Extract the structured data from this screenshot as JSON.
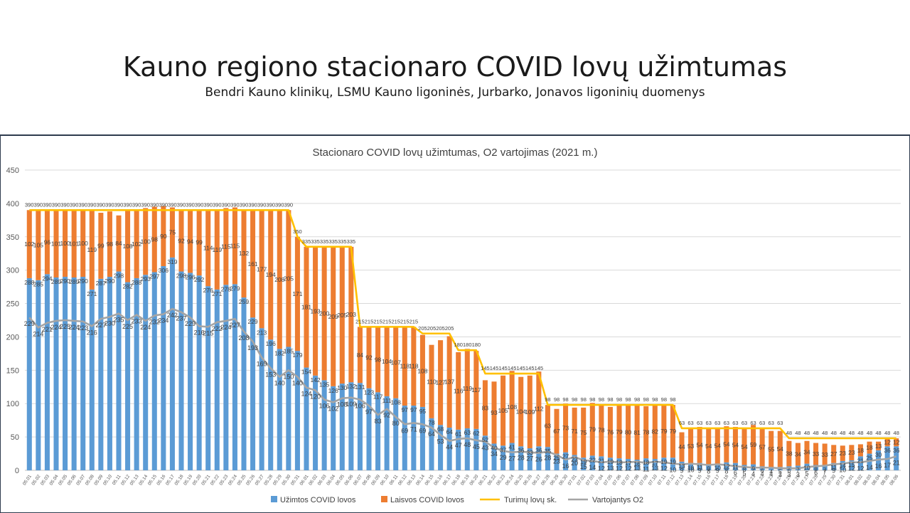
{
  "slide": {
    "title": "Kauno regiono stacionaro COVID lovų užimtumas",
    "subtitle": "Bendri Kauno klinikų, LSMU Kauno ligoninės, Jurbarko, Jonavos ligoninių duomenys"
  },
  "chart_data": {
    "type": "bar",
    "title": "Stacionaro COVID lovų užimtumas, O2 vartojimas (2021 m.)",
    "ylim": [
      0,
      450
    ],
    "yticks": [
      0,
      50,
      100,
      150,
      200,
      250,
      300,
      350,
      400,
      450
    ],
    "grid": true,
    "legend_position": "bottom",
    "categories": [
      "05.01",
      "05.02",
      "05.03",
      "05.04",
      "05.05",
      "05.06",
      "05.07",
      "05.08",
      "05.09",
      "05.10",
      "05.11",
      "05.12",
      "05.13",
      "05.14",
      "05.15",
      "05.16",
      "05.17",
      "05.18",
      "05.19",
      "05.20",
      "05.21",
      "05.22",
      "05.23",
      "05.24",
      "05.25",
      "05.26",
      "05.27",
      "05.28",
      "05.29",
      "05.30",
      "05.31",
      "06.01",
      "06.02",
      "06.03",
      "06.04",
      "06.05",
      "06.06",
      "06.07",
      "06.08",
      "06.09",
      "06.10",
      "06.11",
      "06.12",
      "06.13",
      "06.14",
      "06.15",
      "06.16",
      "06.17",
      "06.18",
      "06.19",
      "06.20",
      "06.21",
      "06.22",
      "06.23",
      "06.24",
      "06.25",
      "06.26",
      "06.27",
      "06.28",
      "06.29",
      "06.30",
      "07.01",
      "07.02",
      "07.03",
      "07.04",
      "07.05",
      "07.06",
      "07.07",
      "07.08",
      "07.09",
      "07.10",
      "07.11",
      "07.12",
      "07.13",
      "07.14",
      "07.15",
      "07.16",
      "07.17",
      "07.18",
      "07.19",
      "07.20",
      "07.21",
      "07.22",
      "07.23",
      "07.24",
      "07.25",
      "07.26",
      "07.27",
      "07.28",
      "07.29",
      "07.30",
      "07.31",
      "08.01",
      "08.02",
      "08.03",
      "08.04",
      "08.05",
      "08.06"
    ],
    "series": [
      {
        "name": "Užimtos COVID lovos",
        "type": "bar",
        "stack": "beds",
        "color": "#5b9bd5",
        "values": [
          288,
          285,
          294,
          289,
          290,
          289,
          290,
          271,
          287,
          290,
          298,
          282,
          288,
          293,
          297,
          306,
          319,
          298,
          296,
          292,
          276,
          271,
          278,
          279,
          259,
          229,
          213,
          196,
          182,
          185,
          179,
          154,
          142,
          135,
          126,
          130,
          132,
          131,
          123,
          117,
          111,
          108,
          97,
          97,
          95,
          78,
          68,
          64,
          61,
          63,
          62,
          52,
          40,
          37,
          41,
          36,
          33,
          36,
          35,
          25,
          27,
          23,
          19,
          22,
          21,
          19,
          18,
          17,
          16,
          18,
          17,
          19,
          19,
          13,
          10,
          11,
          9,
          10,
          12,
          11,
          8,
          9,
          6,
          4,
          5,
          6,
          7,
          10,
          8,
          7,
          11,
          14,
          15,
          21,
          25,
          30,
          36,
          36
        ],
        "labels": [
          "288",
          "285",
          "294",
          "289",
          "290",
          "289",
          "290",
          "271",
          "287",
          "290",
          "298",
          "282",
          "288",
          "293",
          "297",
          "306",
          "319",
          "298",
          "296",
          "292",
          "276",
          "271",
          "278",
          "279",
          "259",
          "229",
          "213",
          "196",
          "182",
          "185",
          "179",
          "154",
          "142",
          "135",
          "126",
          "130",
          "132",
          "131",
          "123",
          "117",
          "111",
          "108",
          "97",
          "97",
          "95",
          "78",
          "68",
          "64",
          "61",
          "63",
          "62",
          "52",
          "40",
          "37",
          "41",
          "36",
          "33",
          "36",
          "35",
          "25",
          "27",
          "23",
          "19",
          "22",
          "21",
          "19",
          "18",
          "17",
          "16",
          "18",
          "17",
          "19",
          "19",
          "13",
          "10",
          "11",
          "9",
          "10",
          "12",
          "11",
          "8",
          "9",
          "6",
          "4",
          "5",
          "6",
          "7",
          "10",
          "8",
          "7",
          "11",
          "14",
          "15",
          "21",
          "25",
          "30",
          "36",
          "36"
        ]
      },
      {
        "name": "Laisvos COVID lovos",
        "type": "bar",
        "stack": "beds",
        "color": "#ed7d31",
        "values": [
          102,
          105,
          96,
          101,
          100,
          101,
          100,
          119,
          99,
          98,
          84,
          108,
          102,
          100,
          98,
          90,
          75,
          92,
          94,
          99,
          114,
          119,
          115,
          115,
          132,
          161,
          177,
          194,
          208,
          205,
          171,
          181,
          193,
          200,
          209,
          205,
          203,
          84,
          92,
          98,
          104,
          107,
          118,
          118,
          108,
          110,
          127,
          137,
          116,
          119,
          117,
          83,
          93,
          105,
          108,
          104,
          109,
          112,
          63,
          67,
          73,
          71,
          75,
          79,
          78,
          76,
          79,
          80,
          81,
          78,
          82,
          79,
          79,
          44,
          53,
          54,
          54,
          54,
          54,
          54,
          54,
          59,
          57,
          55,
          54,
          38,
          34,
          34,
          33,
          33,
          27,
          23,
          23,
          18,
          18,
          13,
          12,
          12
        ],
        "labels": [
          "102",
          "105",
          "96",
          "101",
          "100",
          "101",
          "100",
          "119",
          "99",
          "98",
          "84",
          "108",
          "102",
          "100",
          "98",
          "90",
          "75",
          "92",
          "94",
          "99",
          "114",
          "119",
          "115",
          "115",
          "132",
          "161",
          "177",
          "194",
          "208",
          "205",
          "171",
          "181",
          "193",
          "200",
          "209",
          "205",
          "203",
          "84",
          "92",
          "98",
          "104",
          "107",
          "118",
          "118",
          "108",
          "110",
          "127",
          "137",
          "116",
          "119",
          "117",
          "83",
          "93",
          "105",
          "108",
          "104",
          "109",
          "112",
          "63",
          "67",
          "73",
          "71",
          "75",
          "79",
          "78",
          "76",
          "79",
          "80",
          "81",
          "78",
          "82",
          "79",
          "79",
          "44",
          "53",
          "54",
          "54",
          "54",
          "54",
          "54",
          "54",
          "59",
          "57",
          "55",
          "54",
          "38",
          "34",
          "34",
          "33",
          "33",
          "27",
          "23",
          "23",
          "18",
          "18",
          "13",
          "12",
          "12"
        ]
      },
      {
        "name": "Turimų lovų sk.",
        "type": "line",
        "color": "#ffc000",
        "values": [
          390,
          390,
          390,
          390,
          390,
          390,
          390,
          390,
          390,
          390,
          390,
          390,
          390,
          390,
          390,
          390,
          390,
          390,
          390,
          390,
          390,
          390,
          390,
          390,
          390,
          390,
          390,
          390,
          390,
          390,
          350,
          335,
          335,
          335,
          335,
          335,
          335,
          215,
          215,
          215,
          215,
          215,
          215,
          215,
          205,
          205,
          205,
          205,
          180,
          180,
          180,
          145,
          145,
          145,
          145,
          145,
          145,
          145,
          98,
          98,
          98,
          98,
          98,
          98,
          98,
          98,
          98,
          98,
          98,
          98,
          98,
          98,
          98,
          63,
          63,
          63,
          63,
          63,
          63,
          63,
          63,
          63,
          63,
          63,
          63,
          48,
          48,
          48,
          48,
          48,
          48,
          48,
          48,
          48,
          48,
          48,
          48,
          48
        ],
        "labels": [
          "390",
          "390",
          "390",
          "390",
          "390",
          "390",
          "390",
          "390",
          "390",
          "390",
          "390",
          "390",
          "390",
          "390",
          "390",
          "390",
          "390",
          "390",
          "390",
          "390",
          "390",
          "390",
          "390",
          "390",
          "390",
          "390",
          "390",
          "390",
          "390",
          "390",
          "350",
          "335",
          "335",
          "335",
          "335",
          "335",
          "335",
          "215",
          "215",
          "215",
          "215",
          "215",
          "215",
          "215",
          "205",
          "205",
          "205",
          "205",
          "180",
          "180",
          "180",
          "145",
          "145",
          "145",
          "145",
          "145",
          "145",
          "145",
          "98",
          "98",
          "98",
          "98",
          "98",
          "98",
          "98",
          "98",
          "98",
          "98",
          "98",
          "98",
          "98",
          "98",
          "98",
          "63",
          "63",
          "63",
          "63",
          "63",
          "63",
          "63",
          "63",
          "63",
          "63",
          "63",
          "63",
          "48",
          "48",
          "48",
          "48",
          "48",
          "48",
          "48",
          "48",
          "48",
          "48",
          "48",
          "48",
          "48"
        ]
      },
      {
        "name": "Vartojantys O2",
        "type": "line",
        "color": "#a5a5a5",
        "values": [
          229,
          214,
          221,
          224,
          225,
          224,
          223,
          216,
          227,
          230,
          235,
          225,
          233,
          224,
          232,
          234,
          242,
          237,
          229,
          216,
          215,
          222,
          224,
          227,
          208,
          193,
          169,
          153,
          140,
          150,
          140,
          124,
          120,
          106,
          102,
          108,
          109,
          106,
          97,
          83,
          92,
          80,
          69,
          71,
          69,
          64,
          53,
          44,
          47,
          48,
          45,
          43,
          34,
          29,
          27,
          28,
          27,
          26,
          28,
          23,
          16,
          20,
          15,
          14,
          12,
          13,
          12,
          12,
          13,
          11,
          13,
          12,
          10,
          9,
          10,
          9,
          8,
          9,
          8,
          6,
          5,
          4,
          4,
          4,
          3,
          3,
          3,
          5,
          6,
          7,
          9,
          10,
          12,
          12,
          14,
          16,
          17,
          21
        ],
        "labels": [
          "229",
          "214",
          "221",
          "224",
          "225",
          "224",
          "223",
          "216",
          "227",
          "230",
          "235",
          "225",
          "233",
          "224",
          "232",
          "234",
          "242",
          "237",
          "229",
          "216",
          "215",
          "222",
          "224",
          "227",
          "208",
          "193",
          "169",
          "153",
          "140",
          "150",
          "140",
          "124",
          "120",
          "106",
          "102",
          "108",
          "109",
          "106",
          "97",
          "83",
          "92",
          "80",
          "69",
          "71",
          "69",
          "64",
          "53",
          "44",
          "47",
          "48",
          "45",
          "43",
          "34",
          "29",
          "27",
          "28",
          "27",
          "26",
          "28",
          "23",
          "16",
          "20",
          "15",
          "14",
          "12",
          "13",
          "12",
          "12",
          "13",
          "11",
          "13",
          "12",
          "10",
          "9",
          "10",
          "9",
          "8",
          "9",
          "8",
          "6",
          "5",
          "4",
          "4",
          "4",
          "3",
          "3",
          "3",
          "5",
          "6",
          "7",
          "9",
          "10",
          "12",
          "12",
          "14",
          "16",
          "17",
          "21"
        ]
      }
    ]
  }
}
